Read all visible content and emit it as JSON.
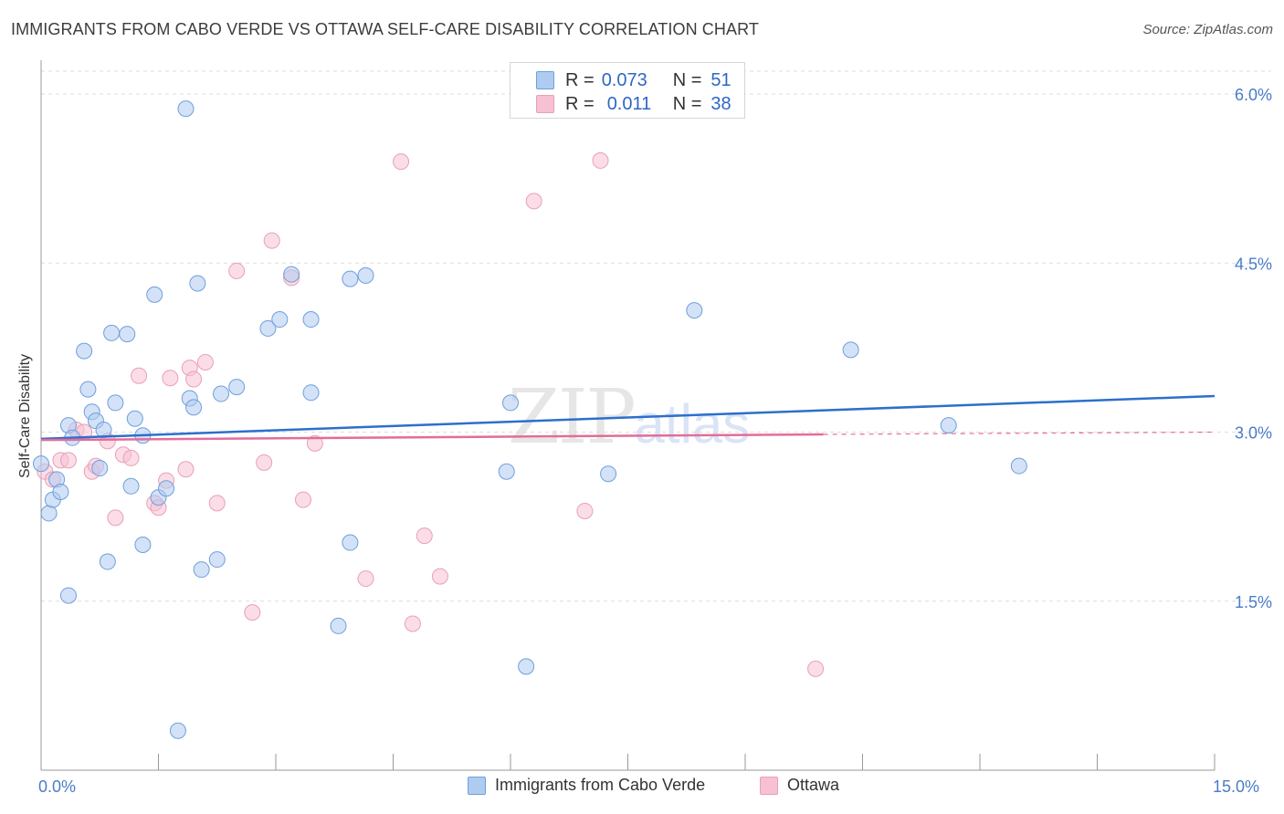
{
  "title": "IMMIGRANTS FROM CABO VERDE VS OTTAWA SELF-CARE DISABILITY CORRELATION CHART",
  "source": "Source: ZipAtlas.com",
  "watermark": {
    "zip": "ZIP",
    "atlas": "atlas"
  },
  "legend_top": {
    "rows": [
      {
        "r_label": "R =",
        "r_value": "0.073",
        "n_label": "N =",
        "n_value": "51"
      },
      {
        "r_label": "R =",
        "r_value": "0.011",
        "n_label": "N =",
        "n_value": "38"
      }
    ]
  },
  "legend_bottom": [
    "Immigrants from Cabo Verde",
    "Ottawa"
  ],
  "colors": {
    "blue_fill": "#aecbf0",
    "blue_stroke": "#6f9fdc",
    "blue_line": "#2d6fcc",
    "pink_fill": "#f7c1d3",
    "pink_stroke": "#e8a0b8",
    "pink_line": "#e46c9a",
    "grid": "#dddddd",
    "tick_text": "#4a7cc9"
  },
  "chart_data": {
    "type": "scatter",
    "title": "IMMIGRANTS FROM CABO VERDE VS OTTAWA SELF-CARE DISABILITY CORRELATION CHART",
    "xlabel": "",
    "ylabel": "Self-Care Disability",
    "xlim": [
      0,
      15
    ],
    "ylim": [
      0,
      6.3
    ],
    "x_tick_labels": [
      "0.0%",
      "15.0%"
    ],
    "y_ticks": [
      1.5,
      3.0,
      4.5,
      6.0
    ],
    "y_tick_labels": [
      "1.5%",
      "3.0%",
      "4.5%",
      "6.0%"
    ],
    "grid": true,
    "legend_placement": "top-center and bottom",
    "series": [
      {
        "name": "Immigrants from Cabo Verde",
        "r": 0.073,
        "n": 51,
        "trend": {
          "x": [
            0,
            15
          ],
          "y": [
            2.94,
            3.32
          ]
        },
        "points": [
          [
            0.0,
            2.72
          ],
          [
            0.1,
            2.28
          ],
          [
            0.15,
            2.4
          ],
          [
            0.2,
            2.58
          ],
          [
            0.25,
            2.47
          ],
          [
            0.35,
            1.55
          ],
          [
            0.35,
            3.06
          ],
          [
            0.4,
            2.95
          ],
          [
            0.55,
            3.72
          ],
          [
            0.6,
            3.38
          ],
          [
            0.65,
            3.18
          ],
          [
            0.7,
            3.1
          ],
          [
            0.8,
            3.02
          ],
          [
            0.75,
            2.68
          ],
          [
            0.85,
            1.85
          ],
          [
            0.9,
            3.88
          ],
          [
            0.95,
            3.26
          ],
          [
            1.1,
            3.87
          ],
          [
            1.2,
            3.12
          ],
          [
            1.15,
            2.52
          ],
          [
            1.3,
            2.97
          ],
          [
            1.3,
            2.0
          ],
          [
            1.45,
            4.22
          ],
          [
            1.75,
            0.35
          ],
          [
            1.85,
            5.87
          ],
          [
            1.9,
            3.3
          ],
          [
            1.95,
            3.22
          ],
          [
            2.0,
            4.32
          ],
          [
            2.05,
            1.78
          ],
          [
            2.25,
            1.87
          ],
          [
            2.3,
            3.34
          ],
          [
            2.5,
            3.4
          ],
          [
            2.9,
            3.92
          ],
          [
            3.05,
            4.0
          ],
          [
            3.2,
            4.4
          ],
          [
            3.45,
            4.0
          ],
          [
            3.45,
            3.35
          ],
          [
            3.8,
            1.28
          ],
          [
            3.95,
            4.36
          ],
          [
            3.95,
            2.02
          ],
          [
            4.15,
            4.39
          ],
          [
            6.0,
            3.26
          ],
          [
            5.95,
            2.65
          ],
          [
            6.2,
            0.92
          ],
          [
            7.25,
            2.63
          ],
          [
            8.35,
            4.08
          ],
          [
            10.35,
            3.73
          ],
          [
            11.6,
            3.06
          ],
          [
            12.5,
            2.7
          ],
          [
            1.5,
            2.42
          ],
          [
            1.6,
            2.5
          ]
        ]
      },
      {
        "name": "Ottawa",
        "r": 0.011,
        "n": 38,
        "trend": {
          "x": [
            0,
            10.0
          ],
          "y": [
            2.93,
            2.98
          ]
        },
        "trend_dashed": {
          "x": [
            10.0,
            15
          ],
          "y": [
            2.98,
            3.0
          ]
        },
        "points": [
          [
            0.05,
            2.65
          ],
          [
            0.15,
            2.58
          ],
          [
            0.25,
            2.75
          ],
          [
            0.35,
            2.75
          ],
          [
            0.45,
            3.02
          ],
          [
            0.55,
            3.0
          ],
          [
            0.65,
            2.65
          ],
          [
            0.7,
            2.7
          ],
          [
            0.85,
            2.92
          ],
          [
            0.95,
            2.24
          ],
          [
            1.05,
            2.8
          ],
          [
            1.15,
            2.77
          ],
          [
            1.25,
            3.5
          ],
          [
            1.45,
            2.37
          ],
          [
            1.5,
            2.33
          ],
          [
            1.6,
            2.57
          ],
          [
            1.65,
            3.48
          ],
          [
            1.85,
            2.67
          ],
          [
            1.9,
            3.57
          ],
          [
            1.95,
            3.47
          ],
          [
            2.1,
            3.62
          ],
          [
            2.25,
            2.37
          ],
          [
            2.5,
            4.43
          ],
          [
            2.7,
            1.4
          ],
          [
            2.85,
            2.73
          ],
          [
            2.95,
            4.7
          ],
          [
            3.2,
            4.37
          ],
          [
            3.35,
            2.4
          ],
          [
            3.5,
            2.9
          ],
          [
            4.15,
            1.7
          ],
          [
            4.6,
            5.4
          ],
          [
            4.75,
            1.3
          ],
          [
            4.9,
            2.08
          ],
          [
            5.1,
            1.72
          ],
          [
            6.3,
            5.05
          ],
          [
            6.95,
            2.3
          ],
          [
            7.15,
            5.41
          ],
          [
            9.9,
            0.9
          ]
        ]
      }
    ]
  }
}
